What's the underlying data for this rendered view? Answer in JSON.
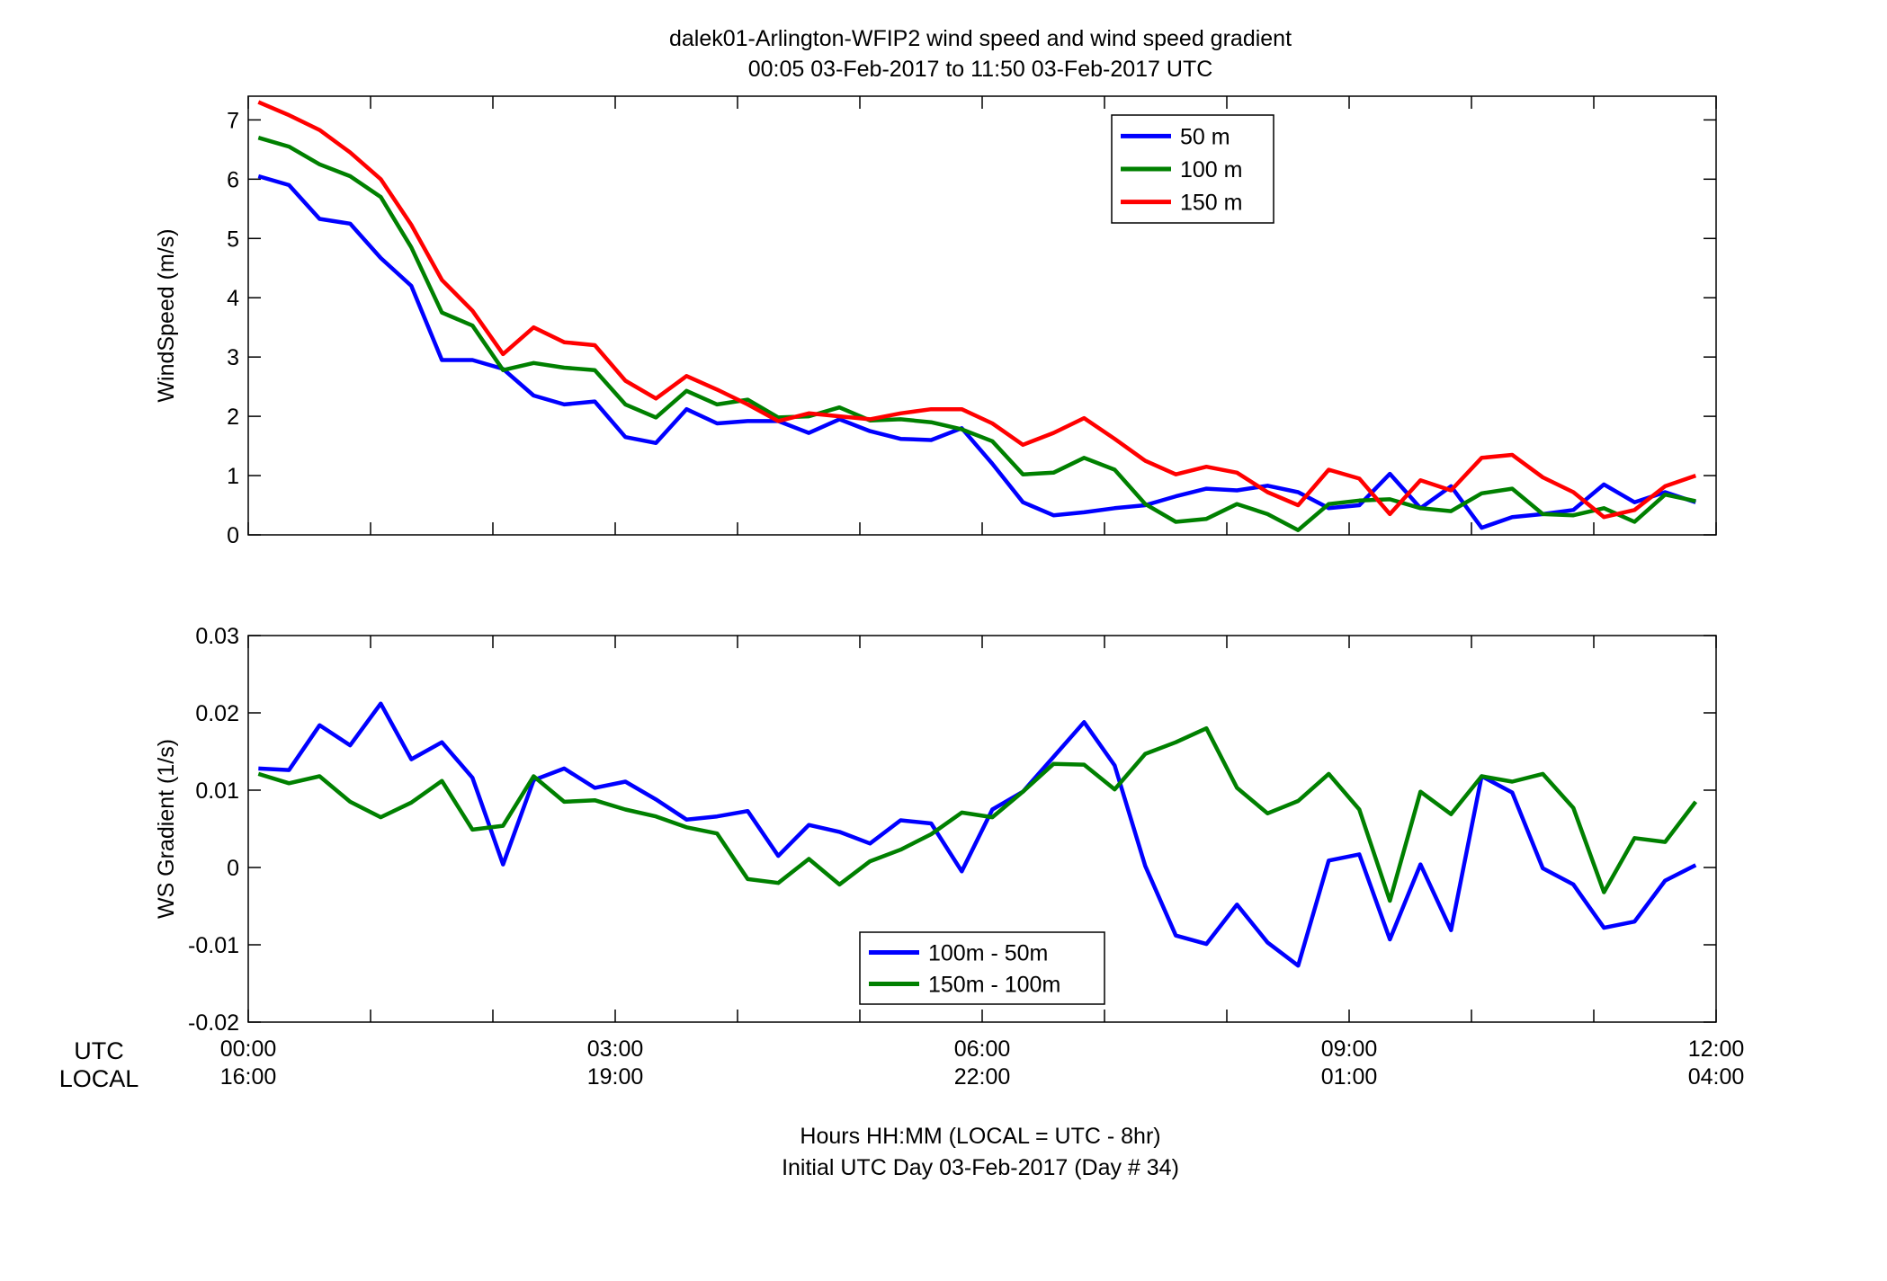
{
  "figure": {
    "title_line1": "dalek01-Arlington-WFIP2  wind speed and wind speed gradient",
    "title_line2": "00:05 03-Feb-2017 to 11:50 03-Feb-2017  UTC",
    "row_label_utc": "UTC",
    "row_label_local": "LOCAL",
    "xlabel_line1": "Hours HH:MM  (LOCAL = UTC - 8hr)",
    "xlabel_line2": "Initial UTC Day 03-Feb-2017 (Day # 34)",
    "utc_ticks": [
      "00:00",
      "03:00",
      "06:00",
      "09:00",
      "12:00"
    ],
    "local_ticks": [
      "16:00",
      "19:00",
      "22:00",
      "01:00",
      "04:00"
    ]
  },
  "chart_data": [
    {
      "type": "line",
      "ylabel": "WindSpeed (m/s)",
      "xlim": [
        0,
        12
      ],
      "ylim": [
        0,
        7.4
      ],
      "yticks": [
        0,
        1,
        2,
        3,
        4,
        5,
        6,
        7
      ],
      "x_unit": "hours UTC",
      "legend_position": "top-center",
      "x": [
        0.083,
        0.333,
        0.583,
        0.833,
        1.083,
        1.333,
        1.583,
        1.833,
        2.083,
        2.333,
        2.583,
        2.833,
        3.083,
        3.333,
        3.583,
        3.833,
        4.083,
        4.333,
        4.583,
        4.833,
        5.083,
        5.333,
        5.583,
        5.833,
        6.083,
        6.333,
        6.583,
        6.833,
        7.083,
        7.333,
        7.583,
        7.833,
        8.083,
        8.333,
        8.583,
        8.833,
        9.083,
        9.333,
        9.583,
        9.833,
        10.083,
        10.333,
        10.583,
        10.833,
        11.083,
        11.333,
        11.583,
        11.833
      ],
      "series": [
        {
          "name": "50 m",
          "color": "#0000ff",
          "values": [
            6.05,
            5.9,
            5.33,
            5.25,
            4.67,
            4.2,
            2.95,
            2.95,
            2.8,
            2.35,
            2.2,
            2.25,
            1.65,
            1.55,
            2.12,
            1.88,
            1.92,
            1.92,
            1.72,
            1.95,
            1.75,
            1.62,
            1.6,
            1.8,
            1.2,
            0.55,
            0.33,
            0.38,
            0.45,
            0.5,
            0.65,
            0.78,
            0.75,
            0.83,
            0.72,
            0.45,
            0.5,
            1.03,
            0.45,
            0.82,
            0.12,
            0.3,
            0.35,
            0.42,
            0.85,
            0.55,
            0.72,
            0.55
          ]
        },
        {
          "name": "100 m",
          "color": "#008000",
          "values": [
            6.7,
            6.55,
            6.25,
            6.05,
            5.7,
            4.85,
            3.75,
            3.53,
            2.78,
            2.9,
            2.82,
            2.78,
            2.2,
            1.98,
            2.43,
            2.2,
            2.28,
            1.98,
            2.0,
            2.15,
            1.93,
            1.95,
            1.9,
            1.78,
            1.58,
            1.02,
            1.05,
            1.3,
            1.1,
            0.52,
            0.22,
            0.27,
            0.52,
            0.35,
            0.08,
            0.52,
            0.58,
            0.6,
            0.45,
            0.4,
            0.7,
            0.78,
            0.35,
            0.33,
            0.45,
            0.22,
            0.68,
            0.57
          ]
        },
        {
          "name": "150 m",
          "color": "#ff0000",
          "values": [
            7.3,
            7.08,
            6.83,
            6.45,
            6.0,
            5.23,
            4.3,
            3.78,
            3.05,
            3.5,
            3.25,
            3.2,
            2.6,
            2.3,
            2.68,
            2.45,
            2.2,
            1.92,
            2.05,
            2.0,
            1.95,
            2.05,
            2.12,
            2.12,
            1.88,
            1.52,
            1.72,
            1.97,
            1.62,
            1.25,
            1.02,
            1.15,
            1.05,
            0.72,
            0.5,
            1.1,
            0.95,
            0.35,
            0.92,
            0.75,
            1.3,
            1.35,
            0.97,
            0.72,
            0.3,
            0.42,
            0.82,
            1.0
          ]
        }
      ]
    },
    {
      "type": "line",
      "ylabel": "WS Gradient (1/s)",
      "xlim": [
        0,
        12
      ],
      "ylim": [
        -0.02,
        0.03
      ],
      "yticks": [
        -0.02,
        -0.01,
        0,
        0.01,
        0.02,
        0.03
      ],
      "ytick_labels": [
        "-0.02",
        "-0.01",
        "0",
        "0.01",
        "0.02",
        "0.03"
      ],
      "x_unit": "hours UTC",
      "legend_position": "bottom-center",
      "x": [
        0.083,
        0.333,
        0.583,
        0.833,
        1.083,
        1.333,
        1.583,
        1.833,
        2.083,
        2.333,
        2.583,
        2.833,
        3.083,
        3.333,
        3.583,
        3.833,
        4.083,
        4.333,
        4.583,
        4.833,
        5.083,
        5.333,
        5.583,
        5.833,
        6.083,
        6.333,
        6.583,
        6.833,
        7.083,
        7.333,
        7.583,
        7.833,
        8.083,
        8.333,
        8.583,
        8.833,
        9.083,
        9.333,
        9.583,
        9.833,
        10.083,
        10.333,
        10.583,
        10.833,
        11.083,
        11.333,
        11.583,
        11.833
      ],
      "series": [
        {
          "name": "100m - 50m",
          "color": "#0000ff",
          "values": [
            0.0128,
            0.0126,
            0.0184,
            0.0158,
            0.0212,
            0.014,
            0.0162,
            0.0116,
            0.0004,
            0.0113,
            0.0128,
            0.0103,
            0.0111,
            0.0088,
            0.0062,
            0.0066,
            0.0073,
            0.0015,
            0.0055,
            0.0046,
            0.0031,
            0.0061,
            0.0057,
            -0.0005,
            0.0075,
            0.0098,
            0.0143,
            0.0188,
            0.0132,
            0.0002,
            -0.0088,
            -0.0099,
            -0.0048,
            -0.0097,
            -0.0127,
            0.0009,
            0.0017,
            -0.0093,
            0.0004,
            -0.0081,
            0.0118,
            0.0097,
            -0.0001,
            -0.0022,
            -0.0078,
            -0.007,
            -0.0017,
            0.0003
          ]
        },
        {
          "name": "150m - 100m",
          "color": "#008000",
          "values": [
            0.0121,
            0.0109,
            0.0118,
            0.0085,
            0.0065,
            0.0084,
            0.0112,
            0.0049,
            0.0054,
            0.0118,
            0.0085,
            0.0087,
            0.0075,
            0.0066,
            0.0052,
            0.0044,
            -0.0015,
            -0.002,
            0.0011,
            -0.0022,
            0.0008,
            0.0023,
            0.0043,
            0.0071,
            0.0065,
            0.0098,
            0.0134,
            0.0133,
            0.0101,
            0.0147,
            0.0162,
            0.018,
            0.0103,
            0.007,
            0.0086,
            0.0121,
            0.0075,
            -0.0043,
            0.0098,
            0.0069,
            0.0118,
            0.0111,
            0.0121,
            0.0077,
            -0.0032,
            0.0038,
            0.0033,
            0.0085
          ]
        }
      ]
    }
  ]
}
